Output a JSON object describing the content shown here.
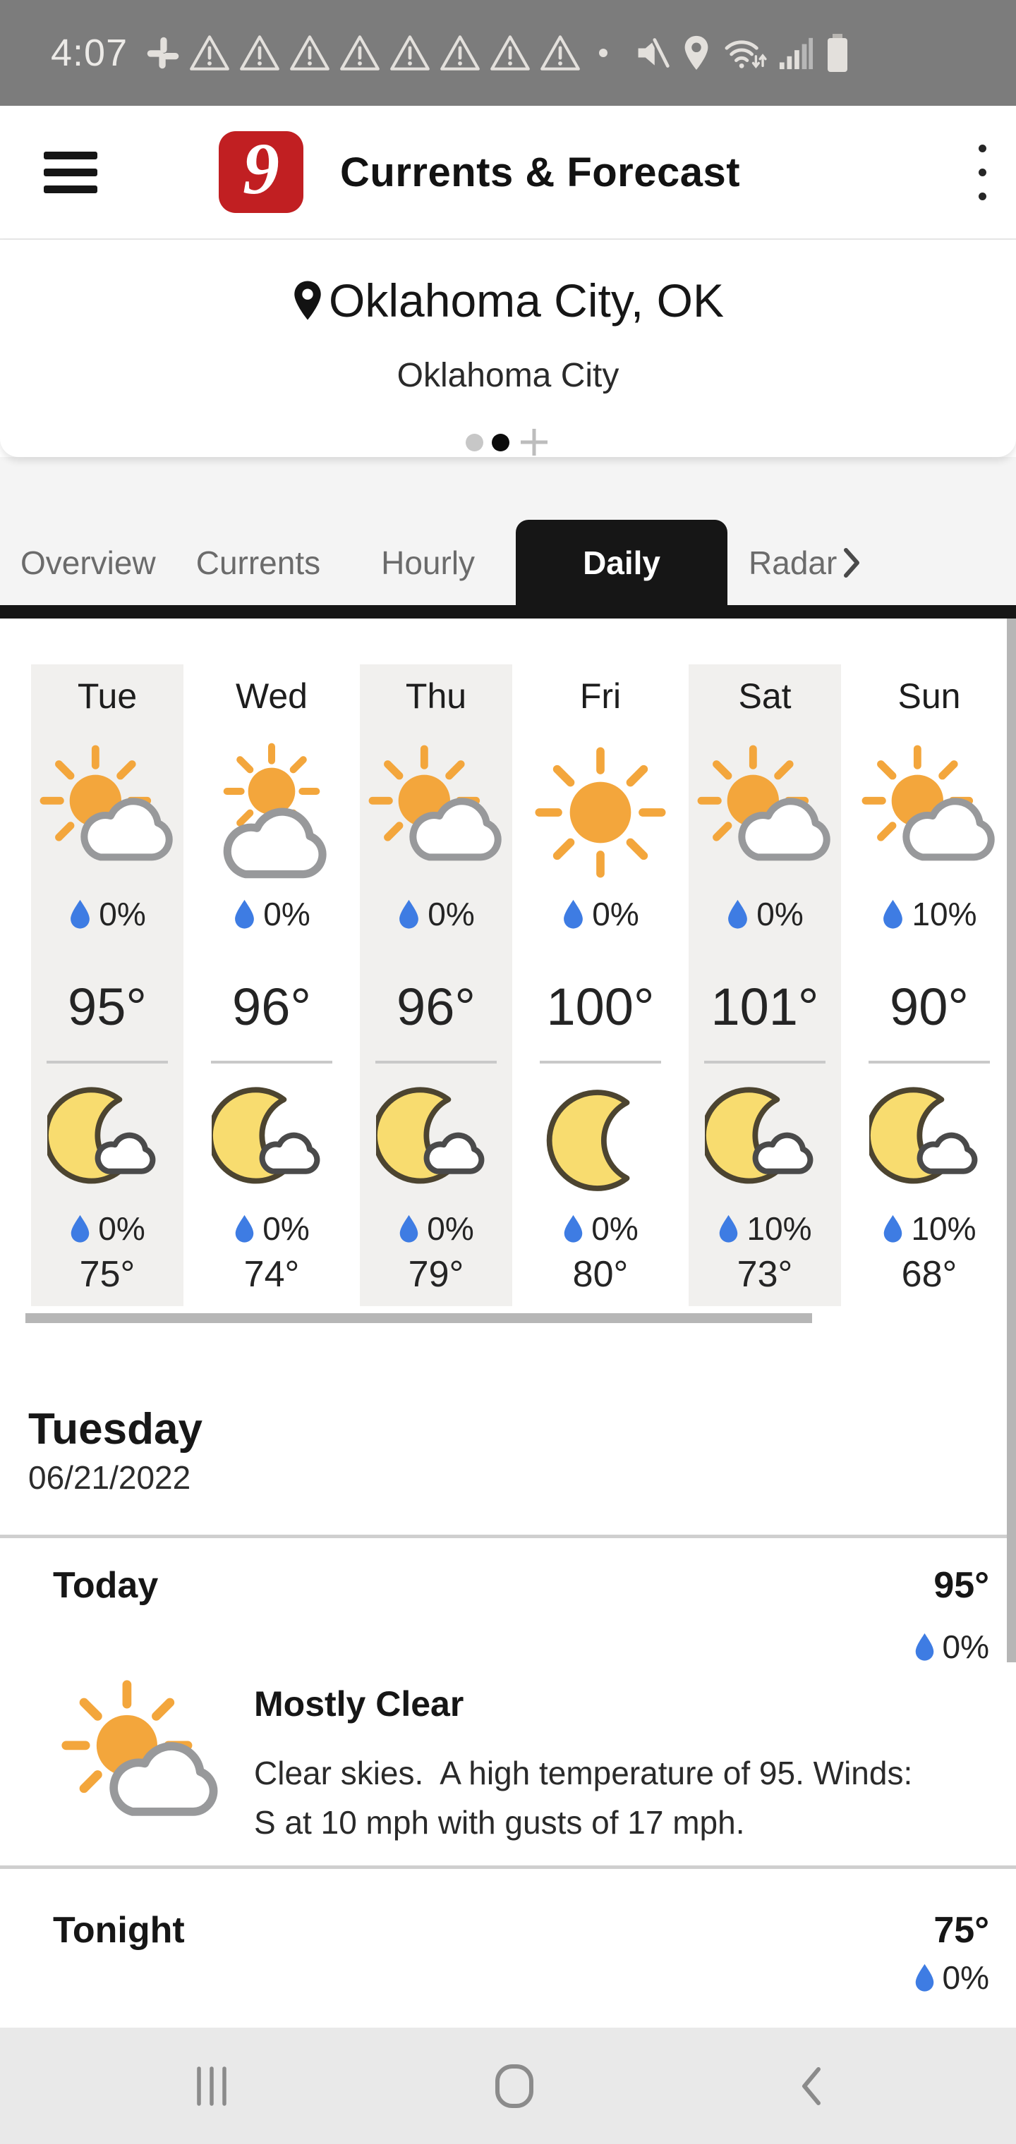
{
  "status_bar": {
    "time": "4:07",
    "left_icons": [
      "slack",
      "warning",
      "warning",
      "warning",
      "warning",
      "warning",
      "warning",
      "warning",
      "warning",
      "dot"
    ],
    "right_icons": [
      "volume-muted",
      "location-filled",
      "wifi",
      "signal",
      "battery"
    ]
  },
  "app_bar": {
    "logo": "9",
    "title": "Currents & Forecast"
  },
  "location_card": {
    "pin_icon": "pin",
    "title": "Oklahoma City, OK",
    "subtitle": "Oklahoma City",
    "page_dots": [
      "inactive",
      "active"
    ],
    "add_icon": "plus"
  },
  "tabs": {
    "items": [
      {
        "label": "Overview",
        "active": false
      },
      {
        "label": "Currents",
        "active": false
      },
      {
        "label": "Hourly",
        "active": false
      },
      {
        "label": "Daily",
        "active": true
      },
      {
        "label": "Radar",
        "active": false
      }
    ],
    "chevron_icon": "chevron-right"
  },
  "daily_forecast": {
    "days": [
      {
        "name": "Tue",
        "shaded": true,
        "day": {
          "icon": "partly-cloudy-day",
          "precip": "0%",
          "temp": "95°"
        },
        "night": {
          "icon": "partly-cloudy-night",
          "precip": "0%",
          "temp": "75°"
        }
      },
      {
        "name": "Wed",
        "shaded": false,
        "day": {
          "icon": "mostly-cloudy-day",
          "precip": "0%",
          "temp": "96°"
        },
        "night": {
          "icon": "partly-cloudy-night",
          "precip": "0%",
          "temp": "74°"
        }
      },
      {
        "name": "Thu",
        "shaded": true,
        "day": {
          "icon": "partly-cloudy-day",
          "precip": "0%",
          "temp": "96°"
        },
        "night": {
          "icon": "partly-cloudy-night",
          "precip": "0%",
          "temp": "79°"
        }
      },
      {
        "name": "Fri",
        "shaded": false,
        "day": {
          "icon": "sunny",
          "precip": "0%",
          "temp": "100°"
        },
        "night": {
          "icon": "clear-night",
          "precip": "0%",
          "temp": "80°"
        }
      },
      {
        "name": "Sat",
        "shaded": true,
        "day": {
          "icon": "partly-cloudy-day",
          "precip": "0%",
          "temp": "101°"
        },
        "night": {
          "icon": "partly-cloudy-night",
          "precip": "10%",
          "temp": "73°"
        }
      },
      {
        "name": "Sun",
        "shaded": false,
        "day": {
          "icon": "partly-cloudy-day",
          "precip": "10%",
          "temp": "90°"
        },
        "night": {
          "icon": "partly-cloudy-night",
          "precip": "10%",
          "temp": "68°"
        }
      }
    ]
  },
  "detail": {
    "day_name": "Tuesday",
    "date": "06/21/2022",
    "today": {
      "label": "Today",
      "temp": "95°",
      "precip": "0%",
      "icon": "partly-cloudy-day",
      "condition": "Mostly Clear",
      "description": "Clear skies.  A high temperature of 95. Winds: S at 10 mph with gusts of 17 mph."
    },
    "tonight": {
      "label": "Tonight",
      "temp": "75°",
      "precip": "0%"
    }
  },
  "nav_bar": {
    "icons": [
      "recent-apps",
      "home",
      "back"
    ]
  },
  "colors": {
    "accent_red": "#c11f22",
    "droplet_blue": "#3e7ce3",
    "sun_orange": "#f3a63c",
    "moon_yellow": "#f8dc6f",
    "tab_active_bg": "#161616",
    "status_bar_bg": "#7c7c7c",
    "nav_bar_bg": "#e9e9e9"
  }
}
